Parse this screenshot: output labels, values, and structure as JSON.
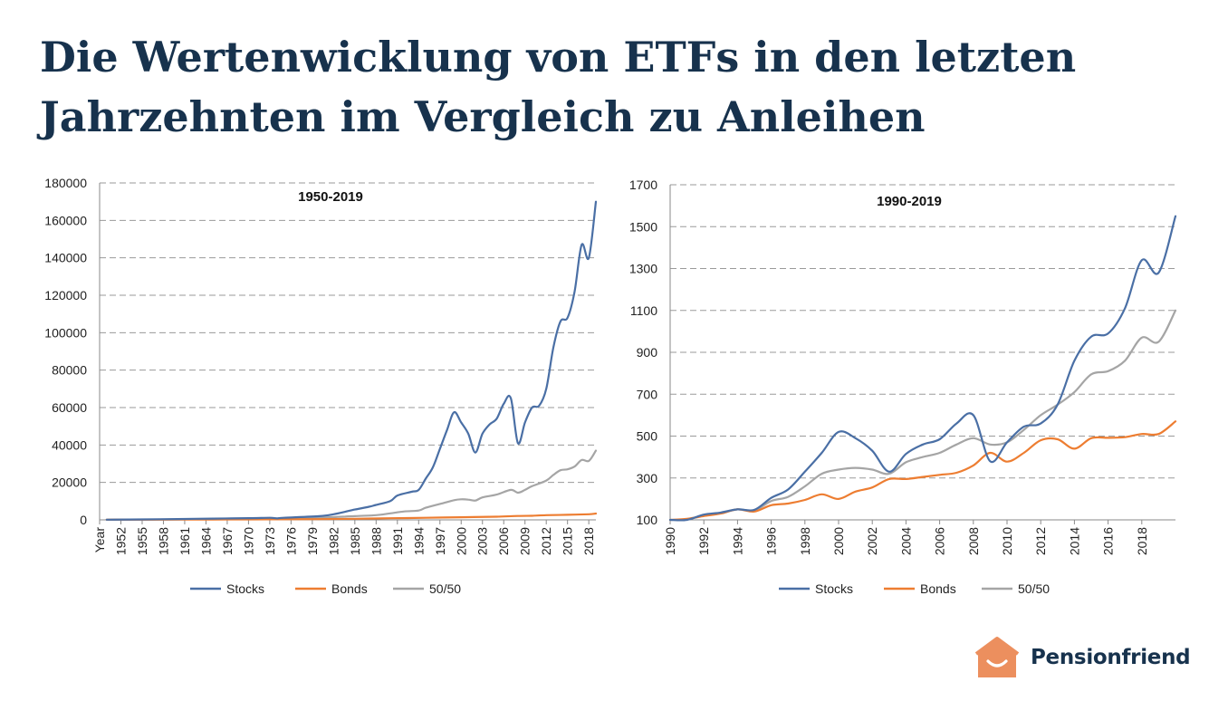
{
  "page": {
    "title_line1": "Die Wertenwicklung von ETFs in den letzten",
    "title_line2": "Jahrzehnten im Vergleich zu Anleihen",
    "logo_text": "Pensionfriend",
    "logo_icon": "house-smile-icon"
  },
  "colors": {
    "stocks": "#4a6fa5",
    "bonds": "#ed7d31",
    "fifty": "#a5a5a5",
    "title": "#17324d",
    "logo": "#ec8f5e"
  },
  "chart_data": [
    {
      "type": "line",
      "title": "1950-2019",
      "ylim": [
        0,
        180000
      ],
      "yticks": [
        0,
        20000,
        40000,
        60000,
        80000,
        100000,
        120000,
        140000,
        160000,
        180000
      ],
      "xrange": [
        1949,
        2019
      ],
      "xtick_labels": [
        "Year",
        "1952",
        "1955",
        "1958",
        "1961",
        "1964",
        "1967",
        "1970",
        "1973",
        "1976",
        "1979",
        "1982",
        "1985",
        "1988",
        "1991",
        "1994",
        "1997",
        "2000",
        "2003",
        "2006",
        "2009",
        "2012",
        "2015",
        "2018"
      ],
      "xtick_values": [
        1949,
        1952,
        1955,
        1958,
        1961,
        1964,
        1967,
        1970,
        1973,
        1976,
        1979,
        1982,
        1985,
        1988,
        1991,
        1994,
        1997,
        2000,
        2003,
        2006,
        2009,
        2012,
        2015,
        2018
      ],
      "grid": "horizontal-dashed",
      "legend_position": "bottom",
      "series": [
        {
          "name": "Stocks",
          "color": "#4a6fa5",
          "points": [
            [
              1950,
              100
            ],
            [
              1955,
              250
            ],
            [
              1960,
              450
            ],
            [
              1965,
              700
            ],
            [
              1970,
              900
            ],
            [
              1973,
              1100
            ],
            [
              1974,
              800
            ],
            [
              1975,
              1100
            ],
            [
              1980,
              2000
            ],
            [
              1982,
              3000
            ],
            [
              1985,
              5500
            ],
            [
              1987,
              7000
            ],
            [
              1988,
              8000
            ],
            [
              1990,
              10000
            ],
            [
              1991,
              13000
            ],
            [
              1993,
              15000
            ],
            [
              1994,
              16000
            ],
            [
              1995,
              22000
            ],
            [
              1996,
              28000
            ],
            [
              1997,
              38000
            ],
            [
              1998,
              48000
            ],
            [
              1999,
              57500
            ],
            [
              2000,
              52000
            ],
            [
              2001,
              46000
            ],
            [
              2002,
              36000
            ],
            [
              2003,
              46000
            ],
            [
              2004,
              51000
            ],
            [
              2005,
              54000
            ],
            [
              2006,
              62000
            ],
            [
              2007,
              65000
            ],
            [
              2008,
              41000
            ],
            [
              2009,
              52000
            ],
            [
              2010,
              60000
            ],
            [
              2011,
              61000
            ],
            [
              2012,
              70000
            ],
            [
              2013,
              92000
            ],
            [
              2014,
              106000
            ],
            [
              2015,
              108000
            ],
            [
              2016,
              122000
            ],
            [
              2017,
              147000
            ],
            [
              2018,
              140000
            ],
            [
              2019,
              170000
            ]
          ]
        },
        {
          "name": "Bonds",
          "color": "#ed7d31",
          "points": [
            [
              1950,
              100
            ],
            [
              1960,
              160
            ],
            [
              1970,
              250
            ],
            [
              1980,
              400
            ],
            [
              1985,
              600
            ],
            [
              1990,
              850
            ],
            [
              1995,
              1100
            ],
            [
              2000,
              1400
            ],
            [
              2005,
              1700
            ],
            [
              2008,
              2100
            ],
            [
              2010,
              2200
            ],
            [
              2012,
              2500
            ],
            [
              2015,
              2700
            ],
            [
              2018,
              3000
            ],
            [
              2019,
              3400
            ]
          ]
        },
        {
          "name": "50/50",
          "color": "#a5a5a5",
          "points": [
            [
              1950,
              100
            ],
            [
              1960,
              250
            ],
            [
              1970,
              500
            ],
            [
              1975,
              800
            ],
            [
              1980,
              1200
            ],
            [
              1985,
              2000
            ],
            [
              1988,
              2500
            ],
            [
              1990,
              3500
            ],
            [
              1992,
              4500
            ],
            [
              1994,
              5000
            ],
            [
              1995,
              6500
            ],
            [
              1997,
              8500
            ],
            [
              1999,
              10500
            ],
            [
              2000,
              11000
            ],
            [
              2001,
              10800
            ],
            [
              2002,
              10300
            ],
            [
              2003,
              12000
            ],
            [
              2005,
              13500
            ],
            [
              2007,
              16000
            ],
            [
              2008,
              14500
            ],
            [
              2009,
              16000
            ],
            [
              2010,
              18000
            ],
            [
              2012,
              21000
            ],
            [
              2013,
              24000
            ],
            [
              2014,
              26500
            ],
            [
              2015,
              27000
            ],
            [
              2016,
              28500
            ],
            [
              2017,
              32000
            ],
            [
              2018,
              31500
            ],
            [
              2019,
              37000
            ]
          ]
        }
      ]
    },
    {
      "type": "line",
      "title": "1990-2019",
      "ylim": [
        100,
        1700
      ],
      "yticks": [
        100,
        300,
        500,
        700,
        900,
        1100,
        1300,
        1500,
        1700
      ],
      "xrange": [
        1990,
        2020
      ],
      "xtick_labels": [
        "1990",
        "1992",
        "1994",
        "1996",
        "1998",
        "2000",
        "2002",
        "2004",
        "2006",
        "2008",
        "2010",
        "2012",
        "2014",
        "2016",
        "2018"
      ],
      "xtick_values": [
        1990,
        1992,
        1994,
        1996,
        1998,
        2000,
        2002,
        2004,
        2006,
        2008,
        2010,
        2012,
        2014,
        2016,
        2018
      ],
      "grid": "horizontal-dashed",
      "legend_position": "bottom",
      "series": [
        {
          "name": "Stocks",
          "color": "#4a6fa5",
          "points": [
            [
              1990,
              100
            ],
            [
              1991,
              100
            ],
            [
              1992,
              125
            ],
            [
              1993,
              135
            ],
            [
              1994,
              150
            ],
            [
              1995,
              148
            ],
            [
              1996,
              205
            ],
            [
              1997,
              245
            ],
            [
              1998,
              330
            ],
            [
              1999,
              420
            ],
            [
              2000,
              520
            ],
            [
              2001,
              490
            ],
            [
              2002,
              430
            ],
            [
              2003,
              330
            ],
            [
              2004,
              415
            ],
            [
              2005,
              460
            ],
            [
              2006,
              485
            ],
            [
              2007,
              560
            ],
            [
              2008,
              600
            ],
            [
              2009,
              380
            ],
            [
              2010,
              470
            ],
            [
              2011,
              545
            ],
            [
              2012,
              560
            ],
            [
              2013,
              650
            ],
            [
              2014,
              860
            ],
            [
              2015,
              975
            ],
            [
              2016,
              990
            ],
            [
              2017,
              1110
            ],
            [
              2018,
              1340
            ],
            [
              2019,
              1280
            ],
            [
              2020,
              1550
            ]
          ]
        },
        {
          "name": "Bonds",
          "color": "#ed7d31",
          "points": [
            [
              1990,
              100
            ],
            [
              1991,
              105
            ],
            [
              1992,
              118
            ],
            [
              1993,
              130
            ],
            [
              1994,
              150
            ],
            [
              1995,
              140
            ],
            [
              1996,
              170
            ],
            [
              1997,
              178
            ],
            [
              1998,
              195
            ],
            [
              1999,
              222
            ],
            [
              2000,
              200
            ],
            [
              2001,
              235
            ],
            [
              2002,
              255
            ],
            [
              2003,
              295
            ],
            [
              2004,
              295
            ],
            [
              2005,
              305
            ],
            [
              2006,
              315
            ],
            [
              2007,
              325
            ],
            [
              2008,
              360
            ],
            [
              2009,
              420
            ],
            [
              2010,
              378
            ],
            [
              2011,
              420
            ],
            [
              2012,
              480
            ],
            [
              2013,
              485
            ],
            [
              2014,
              440
            ],
            [
              2015,
              490
            ],
            [
              2016,
              492
            ],
            [
              2017,
              495
            ],
            [
              2018,
              510
            ],
            [
              2019,
              510
            ],
            [
              2020,
              570
            ]
          ]
        },
        {
          "name": "50/50",
          "color": "#a5a5a5",
          "points": [
            [
              1990,
              100
            ],
            [
              1991,
              103
            ],
            [
              1992,
              122
            ],
            [
              1993,
              132
            ],
            [
              1994,
              150
            ],
            [
              1995,
              145
            ],
            [
              1996,
              190
            ],
            [
              1997,
              210
            ],
            [
              1998,
              260
            ],
            [
              1999,
              320
            ],
            [
              2000,
              340
            ],
            [
              2001,
              348
            ],
            [
              2002,
              340
            ],
            [
              2003,
              320
            ],
            [
              2004,
              375
            ],
            [
              2005,
              400
            ],
            [
              2006,
              420
            ],
            [
              2007,
              460
            ],
            [
              2008,
              490
            ],
            [
              2009,
              460
            ],
            [
              2010,
              470
            ],
            [
              2011,
              530
            ],
            [
              2012,
              600
            ],
            [
              2013,
              650
            ],
            [
              2014,
              710
            ],
            [
              2015,
              795
            ],
            [
              2016,
              810
            ],
            [
              2017,
              860
            ],
            [
              2018,
              970
            ],
            [
              2019,
              950
            ],
            [
              2020,
              1100
            ]
          ]
        }
      ]
    }
  ]
}
